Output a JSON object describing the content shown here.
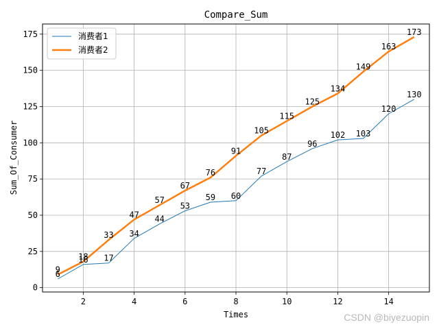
{
  "chart_data": {
    "type": "line",
    "title": "Compare_Sum",
    "xlabel": "Times",
    "ylabel": "Sum_Of_Consumer",
    "xlim": [
      0.4,
      15.6
    ],
    "ylim": [
      -3,
      182
    ],
    "x_ticks": [
      2,
      4,
      6,
      8,
      10,
      12,
      14
    ],
    "y_ticks": [
      0,
      25,
      50,
      75,
      100,
      125,
      150,
      175
    ],
    "grid": true,
    "legend_position": "top-left",
    "x": [
      1,
      2,
      3,
      4,
      5,
      6,
      7,
      8,
      9,
      10,
      11,
      12,
      13,
      14,
      15
    ],
    "series": [
      {
        "name": "消费者1",
        "color": "#1f77b4",
        "width": 1,
        "values": [
          6,
          16,
          17,
          34,
          44,
          53,
          59,
          60,
          77,
          87,
          96,
          102,
          103,
          120,
          130
        ]
      },
      {
        "name": "消费者2",
        "color": "#ff7f0e",
        "width": 2.5,
        "values": [
          9,
          18,
          33,
          47,
          57,
          67,
          76,
          91,
          105,
          115,
          125,
          134,
          149,
          163,
          173
        ]
      }
    ]
  },
  "watermark": "CSDN @biyezuopin"
}
